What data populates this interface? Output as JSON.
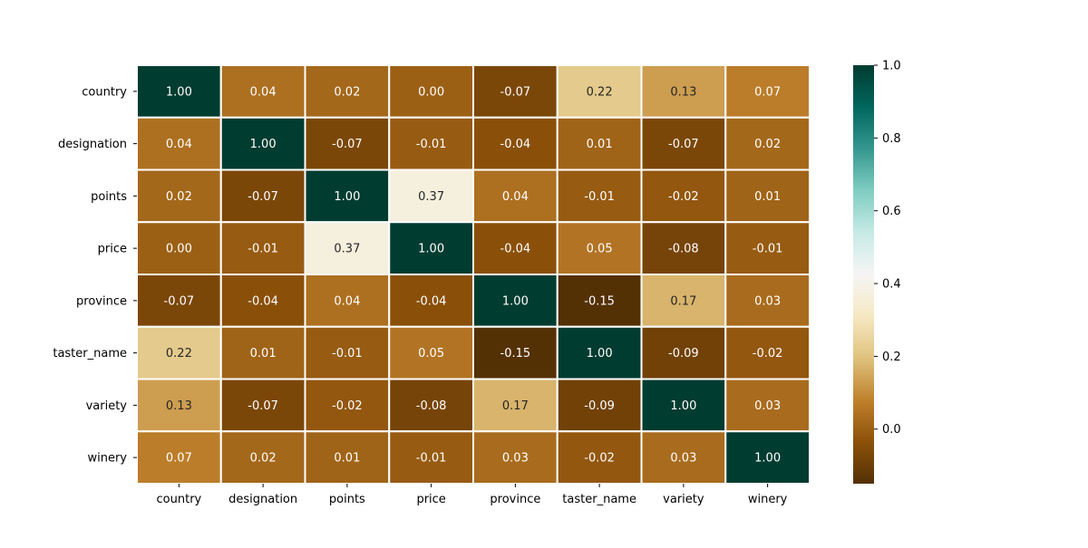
{
  "chart_data": {
    "type": "heatmap",
    "title": "",
    "xlabel": "",
    "ylabel": "",
    "x_categories": [
      "country",
      "designation",
      "points",
      "price",
      "province",
      "taster_name",
      "variety",
      "winery"
    ],
    "y_categories": [
      "country",
      "designation",
      "points",
      "price",
      "province",
      "taster_name",
      "variety",
      "winery"
    ],
    "values": [
      [
        1.0,
        0.04,
        0.02,
        0.0,
        -0.07,
        0.22,
        0.13,
        0.07
      ],
      [
        0.04,
        1.0,
        -0.07,
        -0.01,
        -0.04,
        0.01,
        -0.07,
        0.02
      ],
      [
        0.02,
        -0.07,
        1.0,
        0.37,
        0.04,
        -0.01,
        -0.02,
        0.01
      ],
      [
        0.0,
        -0.01,
        0.37,
        1.0,
        -0.04,
        0.05,
        -0.08,
        -0.01
      ],
      [
        -0.07,
        -0.04,
        0.04,
        -0.04,
        1.0,
        -0.15,
        0.17,
        0.03
      ],
      [
        0.22,
        0.01,
        -0.01,
        0.05,
        -0.15,
        1.0,
        -0.09,
        -0.02
      ],
      [
        0.13,
        -0.07,
        -0.02,
        -0.08,
        0.17,
        -0.09,
        1.0,
        0.03
      ],
      [
        0.07,
        0.02,
        0.01,
        -0.01,
        0.03,
        -0.02,
        0.03,
        1.0
      ]
    ],
    "annotation_format": "2 decimals",
    "colormap": "BrBG",
    "cell_gridlines": "white",
    "colorbar": {
      "position": "right",
      "range": [
        -0.15,
        1.0
      ],
      "ticks": [
        0.0,
        0.2,
        0.4,
        0.6,
        0.8,
        1.0
      ],
      "tick_labels": [
        "0.0",
        "0.2",
        "0.4",
        "0.6",
        "0.8",
        "1.0"
      ]
    }
  }
}
